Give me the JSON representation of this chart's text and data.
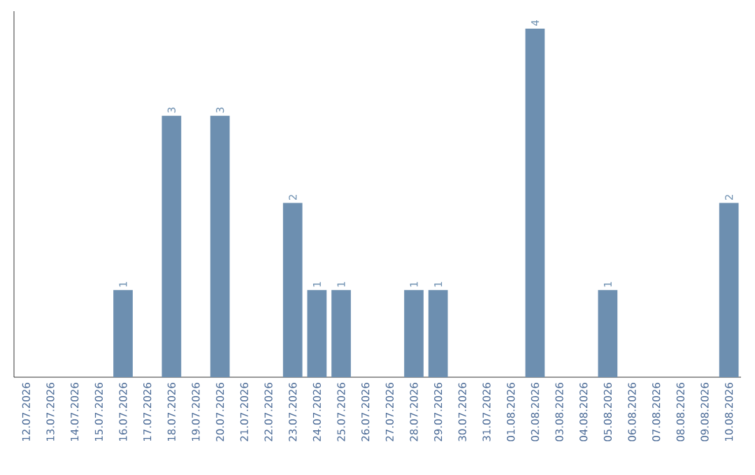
{
  "chart_data": {
    "type": "bar",
    "categories": [
      "12.07.2026",
      "13.07.2026",
      "14.07.2026",
      "15.07.2026",
      "16.07.2026",
      "17.07.2026",
      "18.07.2026",
      "19.07.2026",
      "20.07.2026",
      "21.07.2026",
      "22.07.2026",
      "23.07.2026",
      "24.07.2026",
      "25.07.2026",
      "26.07.2026",
      "27.07.2026",
      "28.07.2026",
      "29.07.2026",
      "30.07.2026",
      "31.07.2026",
      "01.08.2026",
      "02.08.2026",
      "03.08.2026",
      "04.08.2026",
      "05.08.2026",
      "06.08.2026",
      "07.08.2026",
      "08.08.2026",
      "09.08.2026",
      "10.08.2026"
    ],
    "values": [
      0,
      0,
      0,
      0,
      1,
      0,
      3,
      0,
      3,
      0,
      0,
      2,
      1,
      1,
      0,
      0,
      1,
      1,
      0,
      0,
      0,
      4,
      0,
      0,
      1,
      0,
      0,
      0,
      0,
      2
    ],
    "value_labels": [
      null,
      null,
      null,
      null,
      "1",
      null,
      "3",
      null,
      "3",
      null,
      null,
      "2",
      "1",
      "1",
      null,
      null,
      "1",
      "1",
      null,
      null,
      null,
      "4",
      null,
      null,
      "1",
      null,
      null,
      null,
      null,
      "2"
    ],
    "color": "#6d8fb0",
    "ylim": [
      0,
      4.2
    ]
  }
}
